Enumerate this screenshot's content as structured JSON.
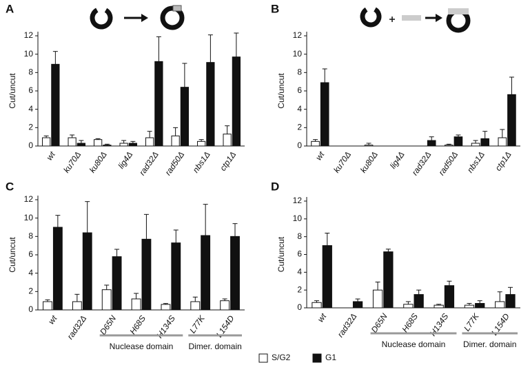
{
  "chart_data": [
    {
      "type": "bar",
      "title": "A",
      "y_label": "Cut/uncut",
      "categories": [
        "wt",
        "ku70Δ",
        "ku80Δ",
        "lig4Δ",
        "rad32Δ",
        "rad50Δ",
        "nbs1Δ",
        "ctp1Δ"
      ],
      "series": [
        {
          "name": "S/G2",
          "color": "#ffffff",
          "values": [
            0.9,
            0.9,
            0.7,
            0.3,
            0.9,
            1.1,
            0.5,
            1.3
          ],
          "errors": [
            0.2,
            0.3,
            0.1,
            0.3,
            0.7,
            0.9,
            0.2,
            0.9
          ]
        },
        {
          "name": "G1",
          "color": "#111111",
          "values": [
            8.9,
            0.3,
            0.1,
            0.3,
            9.2,
            6.4,
            9.1,
            9.7
          ],
          "errors": [
            1.4,
            0.3,
            0.1,
            0.2,
            2.7,
            2.6,
            3.0,
            2.6
          ]
        }
      ],
      "ylim": [
        0,
        12
      ],
      "yticks": [
        0,
        2,
        4,
        6,
        8,
        10,
        12
      ]
    },
    {
      "type": "bar",
      "title": "B",
      "y_label": "Cut/uncut",
      "categories": [
        "wt",
        "ku70Δ",
        "ku80Δ",
        "lig4Δ",
        "rad32Δ",
        "rad50Δ",
        "nbs1Δ",
        "ctp1Δ"
      ],
      "series": [
        {
          "name": "S/G2",
          "color": "#ffffff",
          "values": [
            0.5,
            0,
            0.1,
            0,
            0,
            0.1,
            0.3,
            0.9
          ],
          "errors": [
            0.2,
            0,
            0.2,
            0,
            0,
            0.1,
            0.3,
            0.9
          ]
        },
        {
          "name": "G1",
          "color": "#111111",
          "values": [
            6.9,
            0,
            0,
            0,
            0.6,
            1.0,
            0.8,
            5.6
          ],
          "errors": [
            1.5,
            0,
            0,
            0,
            0.4,
            0.2,
            0.8,
            1.9
          ]
        }
      ],
      "ylim": [
        0,
        12
      ],
      "yticks": [
        0,
        2,
        4,
        6,
        8,
        10,
        12
      ]
    },
    {
      "type": "bar",
      "title": "C",
      "y_label": "Cut/uncut",
      "categories": [
        "wt",
        "rad32Δ",
        "D65N",
        "H68S",
        "H134S",
        "L77K",
        "L154D"
      ],
      "series": [
        {
          "name": "S/G2",
          "color": "#ffffff",
          "values": [
            0.9,
            0.9,
            2.2,
            1.2,
            0.6,
            0.9,
            1.0
          ],
          "errors": [
            0.2,
            0.8,
            0.5,
            0.6,
            0.1,
            0.5,
            0.2
          ]
        },
        {
          "name": "G1",
          "color": "#111111",
          "values": [
            9.0,
            8.4,
            5.8,
            7.7,
            7.3,
            8.1,
            8.0
          ],
          "errors": [
            1.3,
            3.4,
            0.8,
            2.7,
            1.4,
            3.4,
            1.4
          ]
        }
      ],
      "ylim": [
        0,
        12
      ],
      "yticks": [
        0,
        2,
        4,
        6,
        8,
        10,
        12
      ],
      "annotations": [
        "Nuclease domain",
        "Dimer. domain"
      ]
    },
    {
      "type": "bar",
      "title": "D",
      "y_label": "Cut/uncut",
      "categories": [
        "wt",
        "rad32Δ",
        "D65N",
        "H68S",
        "H134S",
        "L77K",
        "L154D"
      ],
      "series": [
        {
          "name": "S/G2",
          "color": "#ffffff",
          "values": [
            0.6,
            0,
            2.0,
            0.4,
            0.3,
            0.3,
            0.7
          ],
          "errors": [
            0.2,
            0,
            0.9,
            0.3,
            0.1,
            0.2,
            1.1
          ]
        },
        {
          "name": "G1",
          "color": "#111111",
          "values": [
            7.0,
            0.7,
            6.3,
            1.5,
            2.5,
            0.5,
            1.5
          ],
          "errors": [
            1.4,
            0.3,
            0.3,
            0.5,
            0.5,
            0.3,
            0.8
          ]
        }
      ],
      "ylim": [
        0,
        12
      ],
      "yticks": [
        0,
        2,
        4,
        6,
        8,
        10,
        12
      ],
      "annotations": [
        "Nuclease domain",
        "Dimer. domain"
      ]
    }
  ]
}
